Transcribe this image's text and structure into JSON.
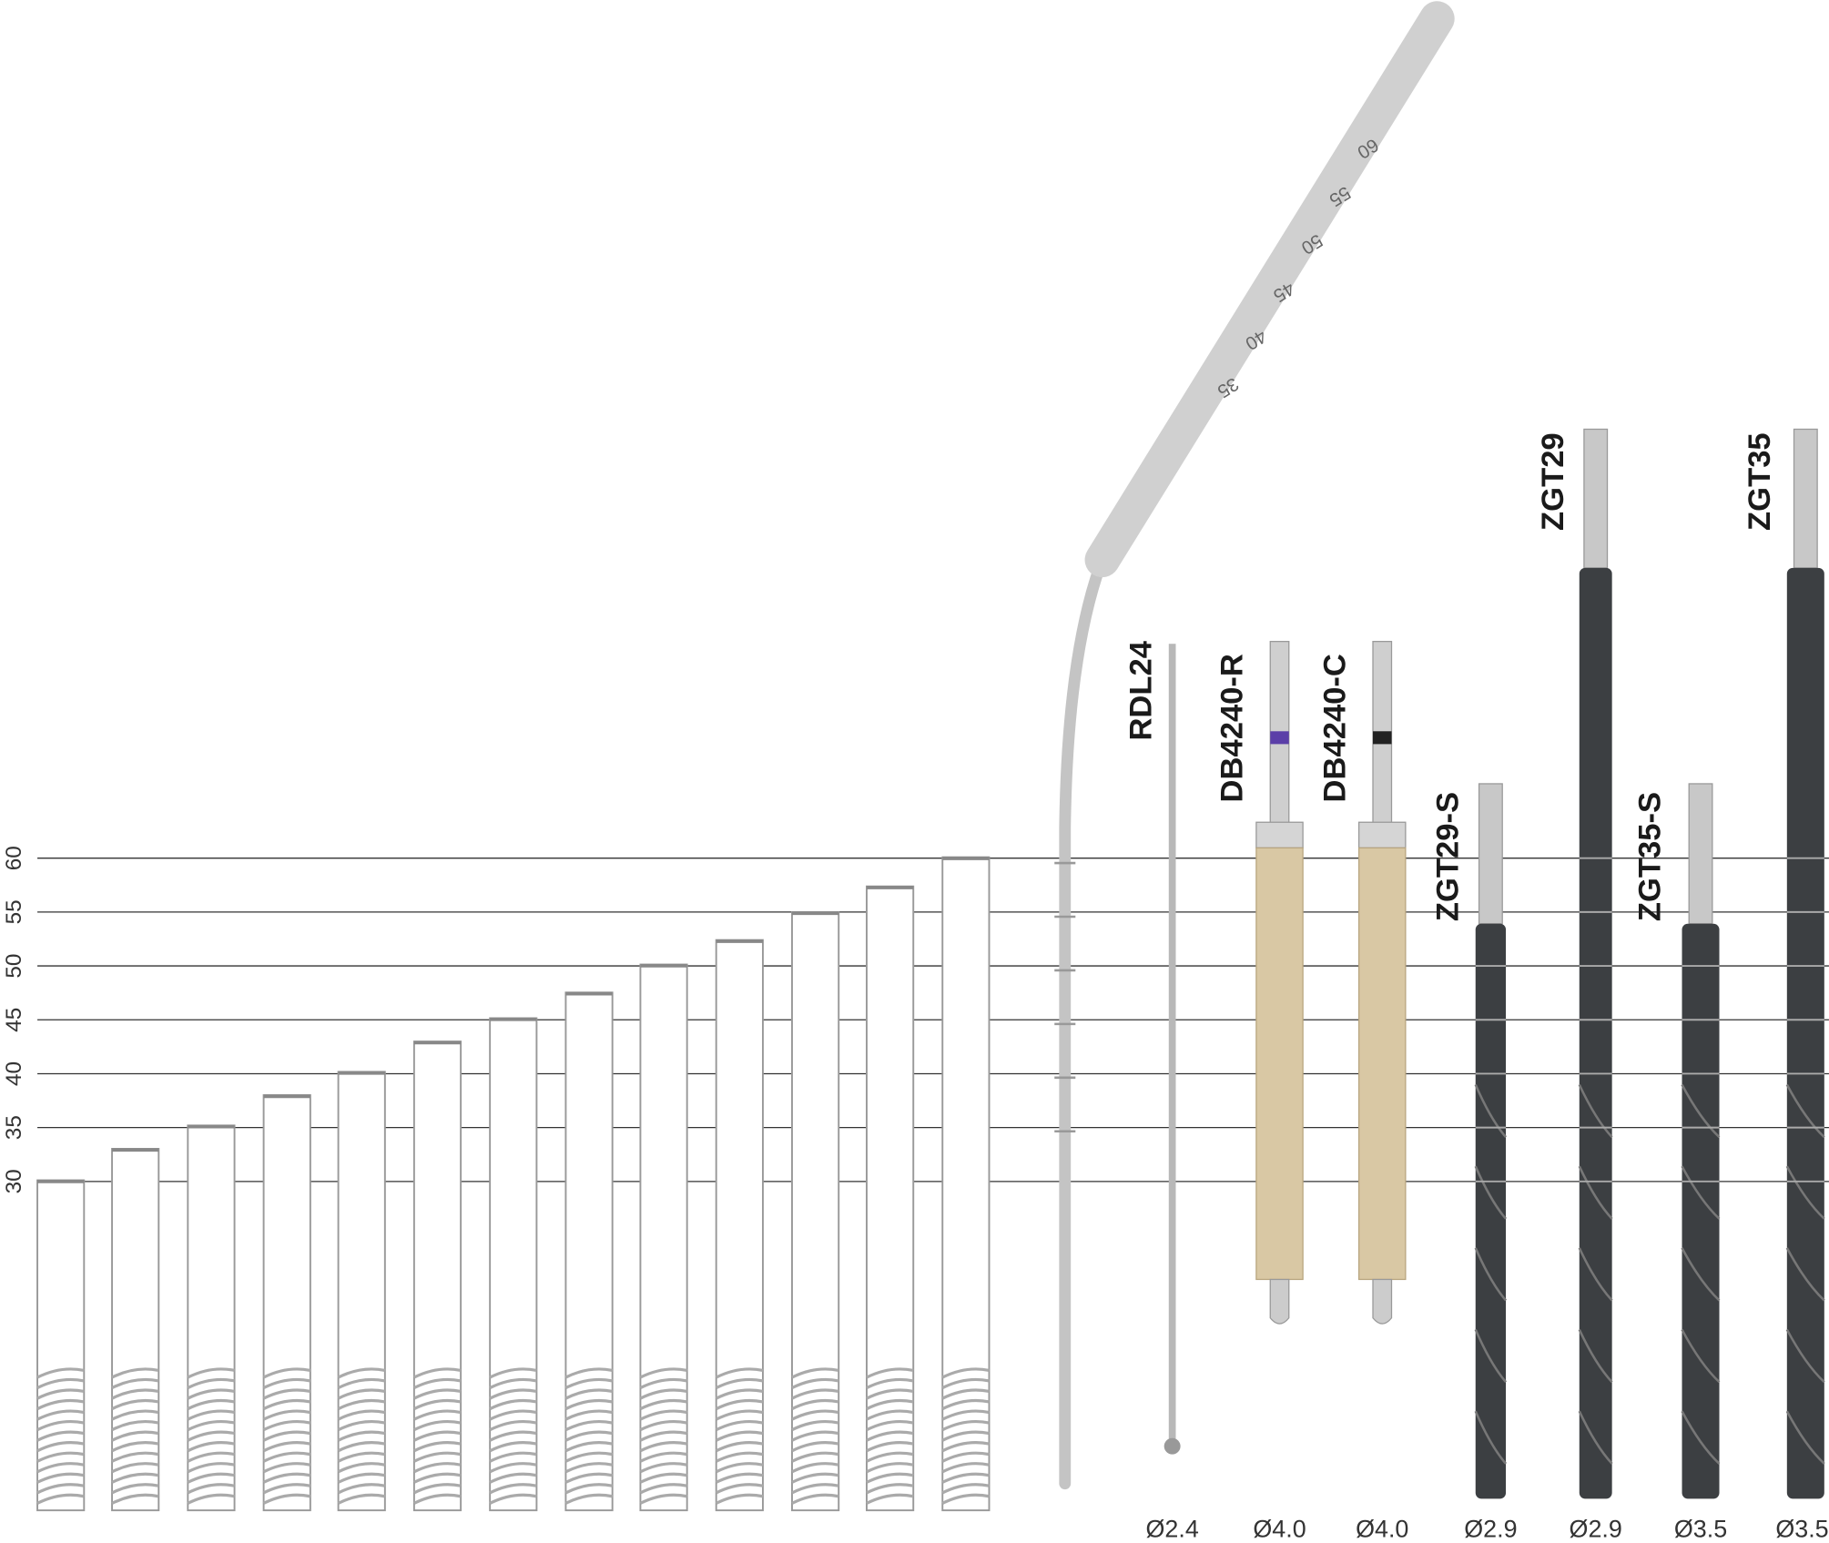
{
  "scale": {
    "ticks": [
      "30",
      "35",
      "40",
      "45",
      "50",
      "55",
      "60"
    ]
  },
  "osteotome": {
    "marks": [
      "35",
      "40",
      "45",
      "50",
      "55",
      "60"
    ]
  },
  "tools": [
    {
      "label": "RDL24",
      "diameter": "Ø2.4"
    },
    {
      "label": "DB4240-R",
      "diameter": "Ø4.0"
    },
    {
      "label": "DB4240-C",
      "diameter": "Ø4.0"
    },
    {
      "label": "ZGT29-S",
      "diameter": "Ø2.9"
    },
    {
      "label": "ZGT29",
      "diameter": "Ø2.9"
    },
    {
      "label": "ZGT35-S",
      "diameter": "Ø3.5"
    },
    {
      "label": "ZGT35",
      "diameter": "Ø3.5"
    }
  ]
}
